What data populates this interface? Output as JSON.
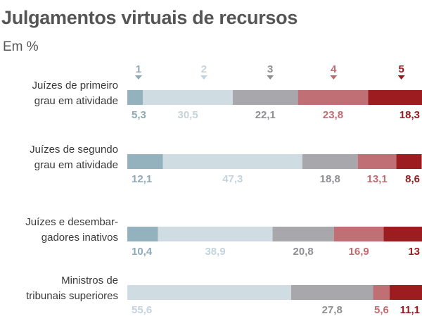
{
  "title": "Julgamentos virtuais de recursos",
  "subtitle": "Em %",
  "chart_data": {
    "type": "bar",
    "orientation": "horizontal",
    "stacked": true,
    "normalized": true,
    "categories": [
      [
        "Juízes de primeiro",
        "grau em atividade"
      ],
      [
        "Juízes de segundo",
        "grau em atividade"
      ],
      [
        "Juízes e desembar-",
        "gadores inativos"
      ],
      [
        "Ministros de",
        "tribunais superiores"
      ]
    ],
    "series": [
      {
        "name": "1",
        "color": "#94b2be",
        "label_color": "#8eaab6",
        "values": [
          5.3,
          12.1,
          10.4,
          null
        ]
      },
      {
        "name": "2",
        "color": "#cfdce2",
        "label_color": "#c3d4dc",
        "values": [
          30.5,
          47.3,
          38.9,
          55.6
        ]
      },
      {
        "name": "3",
        "color": "#a8a7ab",
        "label_color": "#8f8f93",
        "values": [
          22.1,
          18.8,
          20.8,
          27.8
        ]
      },
      {
        "name": "4",
        "color": "#c07074",
        "label_color": "#c46a70",
        "values": [
          23.8,
          13.1,
          16.9,
          5.6
        ]
      },
      {
        "name": "5",
        "color": "#9c1c1f",
        "label_color": "#961a1d",
        "values": [
          18.3,
          8.6,
          13,
          11.1
        ]
      }
    ],
    "value_labels": [
      [
        "5,3",
        "30,5",
        "22,1",
        "23,8",
        "18,3"
      ],
      [
        "12,1",
        "47,3",
        "18,8",
        "13,1",
        "8,6"
      ],
      [
        "10,4",
        "38,9",
        "20,8",
        "16,9",
        "13"
      ],
      [
        "",
        "55,6",
        "27,8",
        "5,6",
        "11,1"
      ]
    ],
    "legend_placement": "top",
    "xlim": [
      0,
      100
    ],
    "grid": false
  }
}
